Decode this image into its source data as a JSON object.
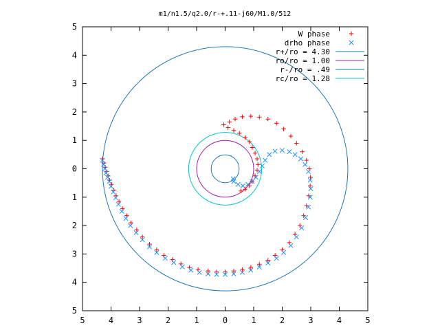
{
  "chart_data": {
    "type": "scatter",
    "title": "m1/n1.5/q2.0/r-+.11-j60/M1.0/512",
    "xlabel": "",
    "ylabel": "",
    "xlim": [
      -5,
      5
    ],
    "ylim": [
      -5,
      5
    ],
    "x_tick_values": [
      -5,
      -4,
      -3,
      -2,
      -1,
      0,
      1,
      2,
      3,
      4,
      5
    ],
    "x_tick_labels": [
      "5",
      "4",
      "3",
      "2",
      "1",
      "0",
      "1",
      "2",
      "3",
      "4",
      "5"
    ],
    "y_tick_values": [
      5,
      4,
      3,
      2,
      1,
      0,
      -1,
      -2,
      -3,
      -4,
      -5
    ],
    "y_tick_labels": [
      "5",
      "4",
      "3",
      "2",
      "1",
      "0",
      "1",
      "2",
      "3",
      "4",
      "5"
    ],
    "grid": false,
    "legend_position": "top-right",
    "series": [
      {
        "name": "W phase",
        "kind": "points",
        "marker": "plus",
        "color": "#ff0000",
        "points": [
          [
            -4.3,
            0.35
          ],
          [
            -4.25,
            0.2
          ],
          [
            -4.2,
            0.05
          ],
          [
            -4.15,
            -0.1
          ],
          [
            -4.1,
            -0.25
          ],
          [
            -4.05,
            -0.4
          ],
          [
            -3.98,
            -0.55
          ],
          [
            -3.9,
            -0.75
          ],
          [
            -3.82,
            -0.95
          ],
          [
            -3.72,
            -1.15
          ],
          [
            -3.6,
            -1.4
          ],
          [
            -3.45,
            -1.65
          ],
          [
            -3.3,
            -1.9
          ],
          [
            -3.1,
            -2.15
          ],
          [
            -2.9,
            -2.4
          ],
          [
            -2.65,
            -2.65
          ],
          [
            -2.4,
            -2.85
          ],
          [
            -2.15,
            -3.05
          ],
          [
            -1.85,
            -3.2
          ],
          [
            -1.55,
            -3.35
          ],
          [
            -1.25,
            -3.48
          ],
          [
            -0.95,
            -3.55
          ],
          [
            -0.6,
            -3.6
          ],
          [
            -0.3,
            -3.63
          ],
          [
            0.0,
            -3.63
          ],
          [
            0.3,
            -3.6
          ],
          [
            0.6,
            -3.55
          ],
          [
            0.9,
            -3.47
          ],
          [
            1.2,
            -3.36
          ],
          [
            1.5,
            -3.22
          ],
          [
            1.75,
            -3.05
          ],
          [
            2.0,
            -2.85
          ],
          [
            2.25,
            -2.6
          ],
          [
            2.45,
            -2.3
          ],
          [
            2.62,
            -2.0
          ],
          [
            2.75,
            -1.65
          ],
          [
            2.85,
            -1.3
          ],
          [
            2.93,
            -0.95
          ],
          [
            2.98,
            -0.6
          ],
          [
            2.99,
            -0.3
          ],
          [
            2.95,
            0.0
          ],
          [
            2.85,
            0.3
          ],
          [
            2.7,
            0.6
          ],
          [
            2.5,
            0.9
          ],
          [
            2.3,
            1.15
          ],
          [
            2.05,
            1.4
          ],
          [
            1.8,
            1.6
          ],
          [
            1.5,
            1.75
          ],
          [
            1.2,
            1.82
          ],
          [
            0.9,
            1.85
          ],
          [
            0.6,
            1.83
          ],
          [
            0.35,
            1.75
          ],
          [
            0.15,
            1.65
          ],
          [
            -0.05,
            1.55
          ],
          [
            0.1,
            1.45
          ],
          [
            0.3,
            1.35
          ],
          [
            0.5,
            1.25
          ],
          [
            0.7,
            1.1
          ],
          [
            0.85,
            0.95
          ],
          [
            0.95,
            0.75
          ],
          [
            1.05,
            0.55
          ],
          [
            1.12,
            0.35
          ],
          [
            1.15,
            0.15
          ],
          [
            1.12,
            -0.05
          ],
          [
            1.05,
            -0.25
          ],
          [
            0.95,
            -0.45
          ],
          [
            0.85,
            -0.6
          ],
          [
            0.7,
            -0.72
          ],
          [
            0.55,
            -0.78
          ]
        ]
      },
      {
        "name": "drho phase",
        "kind": "points",
        "marker": "cross",
        "color": "#1e90ff",
        "points": [
          [
            -4.3,
            0.3
          ],
          [
            -4.26,
            0.15
          ],
          [
            -4.22,
            0.0
          ],
          [
            -4.18,
            -0.15
          ],
          [
            -4.12,
            -0.3
          ],
          [
            -4.06,
            -0.45
          ],
          [
            -4.0,
            -0.62
          ],
          [
            -3.92,
            -0.82
          ],
          [
            -3.84,
            -1.02
          ],
          [
            -3.74,
            -1.25
          ],
          [
            -3.62,
            -1.5
          ],
          [
            -3.48,
            -1.75
          ],
          [
            -3.32,
            -2.0
          ],
          [
            -3.12,
            -2.25
          ],
          [
            -2.9,
            -2.5
          ],
          [
            -2.65,
            -2.75
          ],
          [
            -2.4,
            -2.95
          ],
          [
            -2.1,
            -3.15
          ],
          [
            -1.8,
            -3.3
          ],
          [
            -1.5,
            -3.45
          ],
          [
            -1.2,
            -3.57
          ],
          [
            -0.9,
            -3.65
          ],
          [
            -0.6,
            -3.7
          ],
          [
            -0.3,
            -3.72
          ],
          [
            0.0,
            -3.72
          ],
          [
            0.3,
            -3.7
          ],
          [
            0.6,
            -3.65
          ],
          [
            0.9,
            -3.57
          ],
          [
            1.2,
            -3.46
          ],
          [
            1.5,
            -3.32
          ],
          [
            1.8,
            -3.15
          ],
          [
            2.05,
            -2.95
          ],
          [
            2.3,
            -2.7
          ],
          [
            2.5,
            -2.4
          ],
          [
            2.68,
            -2.08
          ],
          [
            2.82,
            -1.72
          ],
          [
            2.92,
            -1.35
          ],
          [
            2.98,
            -1.0
          ],
          [
            3.0,
            -0.7
          ],
          [
            2.98,
            -0.4
          ],
          [
            2.92,
            -0.1
          ],
          [
            2.8,
            0.15
          ],
          [
            2.65,
            0.35
          ],
          [
            2.45,
            0.5
          ],
          [
            2.25,
            0.6
          ],
          [
            2.0,
            0.65
          ],
          [
            1.75,
            0.62
          ],
          [
            1.55,
            0.5
          ],
          [
            1.4,
            0.3
          ],
          [
            1.3,
            0.1
          ],
          [
            1.2,
            -0.1
          ],
          [
            1.08,
            -0.3
          ],
          [
            0.95,
            -0.45
          ],
          [
            0.8,
            -0.55
          ],
          [
            0.62,
            -0.6
          ],
          [
            0.45,
            -0.55
          ],
          [
            0.3,
            -0.45
          ],
          [
            0.28,
            -0.35
          ]
        ]
      },
      {
        "name": "r+/ro = 4.30",
        "kind": "circle",
        "radius": 4.3,
        "color": "#1f77b4"
      },
      {
        "name": "ro/ro = 1.00",
        "kind": "circle",
        "radius": 1.0,
        "color": "#a020a0"
      },
      {
        "name": "r-/ro = .49",
        "kind": "circle",
        "radius": 0.49,
        "color": "#1f77b4"
      },
      {
        "name": "rc/ro = 1.28",
        "kind": "circle",
        "radius": 1.28,
        "color": "#00c8c8"
      }
    ]
  }
}
